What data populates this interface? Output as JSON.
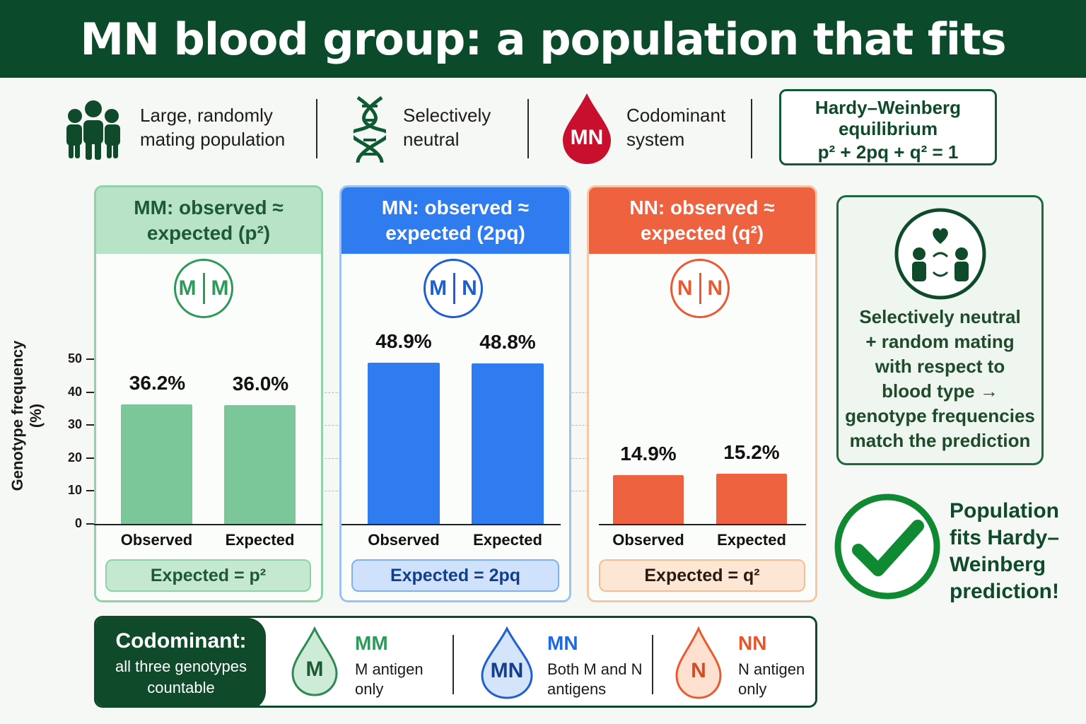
{
  "title": "MN blood group: a population that fits",
  "features": [
    {
      "icon": "people-group-icon",
      "line1": "Large, randomly",
      "line2": "mating population"
    },
    {
      "icon": "dna-icon",
      "line1": "Selectively",
      "line2": "neutral"
    },
    {
      "icon": "blood-drop-icon",
      "icon_text": "MN",
      "line1": "Codominant",
      "line2": "system"
    }
  ],
  "hw_box": {
    "line1": "Hardy–Weinberg",
    "line2": "equilibrium",
    "equation": "p² + 2pq + q² = 1"
  },
  "colors": {
    "title_bg": "#0b4a2b",
    "mm": "#7cc79a",
    "mn": "#2f7cf0",
    "nn": "#ef6240",
    "dark_green": "#0f4a2b"
  },
  "chart_data": {
    "type": "bar",
    "ylabel": "Genotype frequency (%)",
    "ylim": [
      0,
      50
    ],
    "yticks": [
      "0",
      "10",
      "20",
      "30",
      "40",
      "50"
    ],
    "grid": "dashed horizontal",
    "panels": [
      {
        "genotype": "MM",
        "header_line1": "MM: observed ≈",
        "header_line2": "expected (p²)",
        "allele1": "M",
        "allele2": "M",
        "categories": [
          "Observed",
          "Expected"
        ],
        "values": [
          36.2,
          36.0
        ],
        "labels": [
          "36.2%",
          "36.0%"
        ],
        "formula": "Expected = p²"
      },
      {
        "genotype": "MN",
        "header_line1": "MN: observed ≈",
        "header_line2": "expected (2pq)",
        "allele1": "M",
        "allele2": "N",
        "categories": [
          "Observed",
          "Expected"
        ],
        "values": [
          48.9,
          48.8
        ],
        "labels": [
          "48.9%",
          "48.8%"
        ],
        "formula": "Expected = 2pq"
      },
      {
        "genotype": "NN",
        "header_line1": "NN: observed ≈",
        "header_line2": "expected (q²)",
        "allele1": "N",
        "allele2": "N",
        "categories": [
          "Observed",
          "Expected"
        ],
        "values": [
          14.9,
          15.2
        ],
        "labels": [
          "14.9%",
          "15.2%"
        ],
        "formula": "Expected = q²"
      }
    ]
  },
  "side_box": {
    "icon": "couple-mating-icon",
    "lines": [
      "Selectively neutral",
      "+ random mating",
      "with respect to",
      "blood type →",
      "genotype frequencies",
      "match the prediction"
    ]
  },
  "conclusion": {
    "icon": "checkmark-icon",
    "lines": [
      "Population",
      "fits Hardy–",
      "Weinberg",
      "prediction!"
    ]
  },
  "bottom": {
    "heading": "Codominant:",
    "sub1": "all three genotypes",
    "sub2": "countable",
    "items": [
      {
        "drop": "M",
        "name": "MM",
        "line1": "M antigen",
        "line2": "only"
      },
      {
        "drop": "MN",
        "name": "MN",
        "line1": "Both M and N",
        "line2": "antigens"
      },
      {
        "drop": "N",
        "name": "NN",
        "line1": "N antigen",
        "line2": "only"
      }
    ]
  }
}
